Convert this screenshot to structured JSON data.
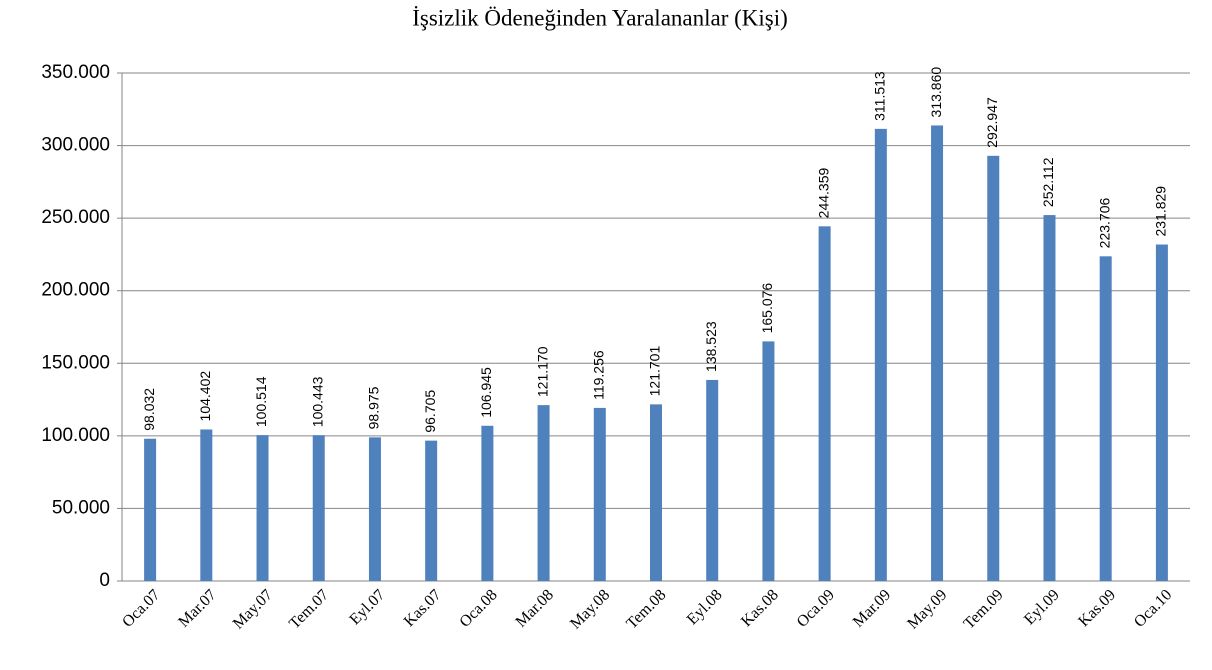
{
  "chart_data": {
    "type": "bar",
    "title": "İşsizlik Ödeneğinden Yaralananlar (Kişi)",
    "categories": [
      "Oca.07",
      "Mar.07",
      "May.07",
      "Tem.07",
      "Eyl.07",
      "Kas.07",
      "Oca.08",
      "Mar.08",
      "May.08",
      "Tem.08",
      "Eyl.08",
      "Kas.08",
      "Oca.09",
      "Mar.09",
      "May.09",
      "Tem.09",
      "Eyl.09",
      "Kas.09",
      "Oca.10"
    ],
    "values": [
      98032,
      104402,
      100514,
      100443,
      98975,
      96705,
      106945,
      121170,
      119256,
      121701,
      138523,
      165076,
      244359,
      311513,
      313860,
      292947,
      252112,
      223706,
      231829
    ],
    "value_labels": [
      "98.032",
      "104.402",
      "100.514",
      "100.443",
      "98.975",
      "96.705",
      "106.945",
      "121.170",
      "119.256",
      "121.701",
      "138.523",
      "165.076",
      "244.359",
      "311.513",
      "313.860",
      "292.947",
      "252.112",
      "223.706",
      "231.829"
    ],
    "color": "#4f81bd",
    "ylim": [
      0,
      350000
    ],
    "yticks": [
      0,
      {
        "value": 50000,
        "label": "50.000"
      },
      {
        "value": 100000,
        "label": "100.000"
      },
      {
        "value": 150000,
        "label": "150.000"
      },
      {
        "value": 200000,
        "label": "200.000"
      },
      {
        "value": 250000,
        "label": "250.000"
      },
      {
        "value": 300000,
        "label": "300.000"
      },
      {
        "value": 350000,
        "label": "350.000"
      }
    ],
    "grid": true
  }
}
